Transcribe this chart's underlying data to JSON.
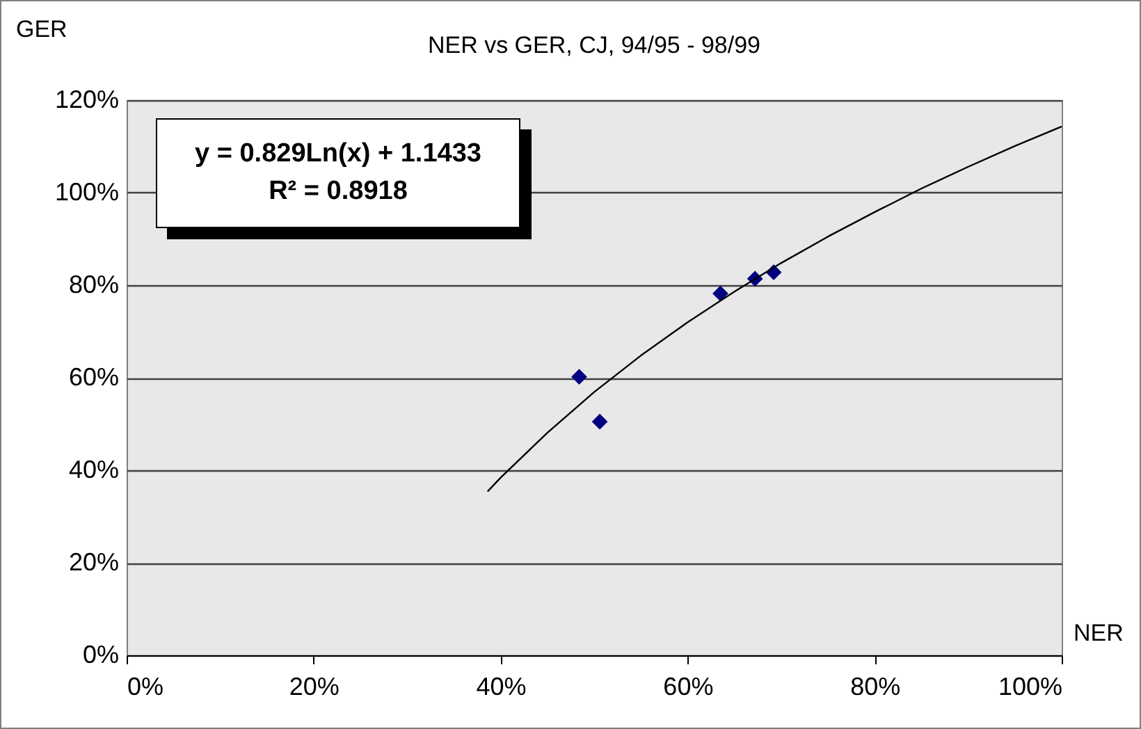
{
  "chart_data": {
    "type": "scatter",
    "title": "NER vs GER, CJ, 94/95 - 98/99",
    "xlabel": "NER",
    "ylabel": "GER",
    "annotations": [
      "y = 0.829Ln(x) + 1.1433",
      "R² = 0.8918"
    ],
    "series": [
      {
        "color": "#000080",
        "marker": "diamond",
        "x": [
          48.4,
          50.6,
          63.5,
          67.2,
          69.2
        ],
        "values": [
          60.2,
          50.5,
          78.2,
          81.4,
          82.8
        ]
      },
      {
        "type": "line",
        "color": "#000000",
        "x": [
          38.6,
          40,
          45,
          50,
          55,
          60,
          65,
          70,
          75,
          80,
          85,
          90,
          95,
          100
        ],
        "values": [
          35.4,
          38.4,
          48.1,
          56.9,
          64.8,
          72.0,
          78.6,
          84.8,
          90.5,
          95.8,
          100.9,
          105.6,
          110.1,
          114.3
        ]
      }
    ],
    "grid": "y",
    "xlim": [
      0,
      100
    ],
    "xticks": [
      {
        "value": 0,
        "label": "0%"
      },
      {
        "value": 20,
        "label": "20%"
      },
      {
        "value": 40,
        "label": "40%"
      },
      {
        "value": 60,
        "label": "60%"
      },
      {
        "value": 80,
        "label": "80%"
      },
      {
        "value": 100,
        "label": "100%"
      }
    ],
    "ylim": [
      0,
      120
    ],
    "yticks": [
      {
        "value": 0,
        "label": "0%"
      },
      {
        "value": 20,
        "label": "20%"
      },
      {
        "value": 40,
        "label": "40%"
      },
      {
        "value": 60,
        "label": "60%"
      },
      {
        "value": 80,
        "label": "80%"
      },
      {
        "value": 100,
        "label": "100%"
      },
      {
        "value": 120,
        "label": "120%"
      }
    ]
  }
}
